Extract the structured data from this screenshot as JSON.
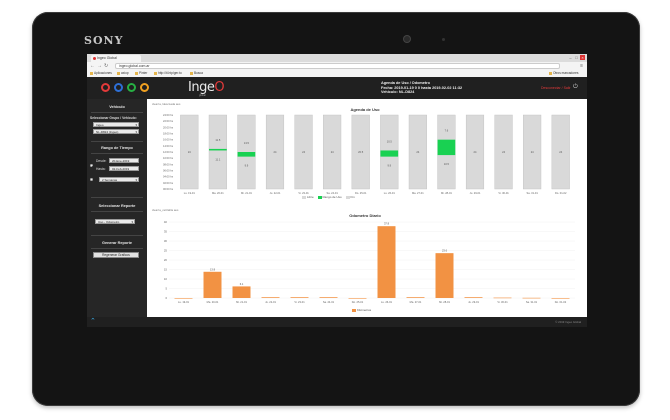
{
  "device": {
    "brand": "SONY"
  },
  "browser": {
    "tab_title": "Ingeo Global",
    "url": "ingeo.global.com.ar",
    "bookmarks": [
      "Aplicaciones",
      "axiop",
      "Pinter",
      "http://ti.htp/ger.to",
      "Busca"
    ],
    "other_bookmarks": "Otros marcadores"
  },
  "header": {
    "logo": "Inge",
    "logo_o": "O",
    "logo_sub": "global",
    "info_title": "Agenda de Uso / Odometro",
    "info_fecha": "Fecha: 2019-01-19 0 0 hasta 2019-02-02 11:32",
    "info_vehiculo": "Vehiculo: NL-D824",
    "logout": "Desconectar / Salir",
    "power_icon": "power-icon",
    "circles": [
      "#e23a3a",
      "#2d6fd6",
      "#27b043",
      "#f0a020"
    ]
  },
  "sidebar": {
    "vehiculo_title": "Vehiculo",
    "select_group_label": "Seleccionar Grupo / Vehiculo:",
    "group_value": "Ingeo",
    "vehicle_value": "NL-D824 (Ingeo)",
    "time_title": "Rango de Tiempo",
    "desde_label": "Desde:",
    "desde_value": "20-Ene-2019",
    "hasta_label": "Hasta:",
    "hasta_value": "02-Feb-2019",
    "preset_value": "2 Semanas",
    "report_title": "Seleccionar Reporte",
    "report_value": "Uso - Odometro",
    "generate_title": "Generar Reporte",
    "generate_button": "Regenerar Graficos"
  },
  "charts": {
    "agenda_caption": "clean'a, ldescLada aus",
    "agenda_title": "Agenda de Uso",
    "odometer_caption": "clean'a_ceClaDa aus",
    "odometer_title": "Odometro Diario",
    "legend_libre": "Libre",
    "legend_uso": "Rango de Uso",
    "legend_fin": "Fin",
    "legend_km": "Kilómetros",
    "color_bar": "#d9d9d9",
    "color_use": "#19d152",
    "color_odo": "#f29243"
  },
  "chart_data": [
    {
      "type": "bar",
      "title": "Agenda de Uso",
      "categories": [
        "Lu. 19-01",
        "Ma. 20-01",
        "Mi. 21-01",
        "Ju. 22-01",
        "Vi. 23-01",
        "Sa. 24-01",
        "Do. 25-01",
        "Lu. 26-01",
        "Ma. 27-01",
        "Mi. 28-01",
        "Ju. 29-01",
        "Vi. 30-01",
        "Sa. 31-01",
        "Do. 01-02"
      ],
      "yticks": [
        "24:00 hs",
        "22:00 hs",
        "20:00 hs",
        "18:00 hs",
        "16:00 hs",
        "14:00 hs",
        "12:00 hs",
        "10:00 hs",
        "08:00 hs",
        "06:00 hs",
        "04:00 hs",
        "02:00 hs",
        "00:00 hs"
      ],
      "ylim": [
        0,
        24
      ],
      "use_ranges": [
        null,
        [
          12.5,
          13
        ],
        [
          10.5,
          12
        ],
        null,
        null,
        null,
        null,
        [
          10.5,
          12.5
        ],
        null,
        [
          11,
          16
        ],
        null,
        null,
        null,
        null
      ],
      "labels_top": [
        "24",
        "11.5",
        "13.5",
        "24",
        "24",
        "24",
        "20.5",
        "10.5",
        "24",
        "7.6",
        "24",
        "24",
        "24",
        "24"
      ],
      "labels_bottom": [
        "",
        "11.1",
        "9.9",
        "",
        "",
        "",
        "",
        "9.9",
        "",
        "10.5",
        "",
        "",
        "",
        ""
      ]
    },
    {
      "type": "bar",
      "title": "Odometro Diario",
      "categories": [
        "Lu. 19-01",
        "Ma. 20-01",
        "Mi. 21-01",
        "Ju. 22-01",
        "Vi. 23-01",
        "Sa. 24-01",
        "Do. 25-01",
        "Lu. 26-01",
        "Ma. 27-01",
        "Mi. 28-01",
        "Ju. 29-01",
        "Vi. 30-01",
        "Sa. 31-01",
        "Do. 01-02"
      ],
      "series": [
        {
          "name": "Kilómetros",
          "values": [
            0,
            13.8,
            6.1,
            0.4,
            0.4,
            0.4,
            0,
            37.8,
            0.4,
            23.6,
            0.4,
            0.2,
            0.1,
            0
          ]
        }
      ],
      "yticks": [
        40,
        35,
        30,
        25,
        20,
        15,
        10,
        5,
        0
      ],
      "ylim": [
        0,
        40
      ],
      "value_labels": [
        "",
        "13.8",
        "6.1",
        "",
        "",
        "",
        "",
        "37.8",
        "",
        "23.6",
        "",
        "",
        "",
        ""
      ]
    }
  ],
  "footer": {
    "copyright": "© 2019 Ingeo Global"
  }
}
